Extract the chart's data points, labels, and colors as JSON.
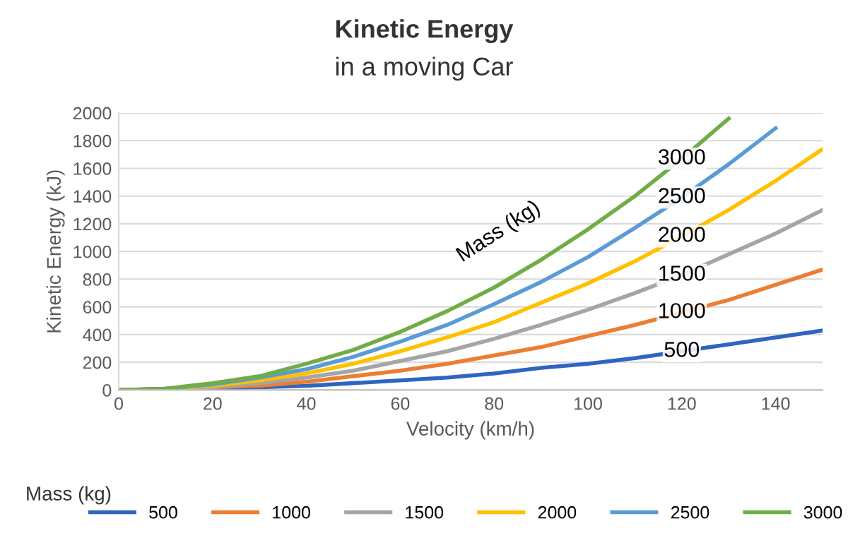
{
  "chart_data": {
    "type": "line",
    "title": "Kinetic Energy",
    "subtitle": "in a moving Car",
    "xlabel": "Velocity (km/h)",
    "ylabel": "Kinetic Energy (kJ)",
    "legend_title": "Mass (kg)",
    "x": [
      0,
      10,
      20,
      30,
      40,
      50,
      60,
      70,
      80,
      90,
      100,
      110,
      120,
      130,
      140,
      150
    ],
    "series": [
      {
        "name": "500",
        "color": "#2f65c0",
        "values": [
          0,
          0,
          10,
          20,
          30,
          50,
          70,
          90,
          120,
          160,
          190,
          230,
          280,
          330,
          380,
          430
        ]
      },
      {
        "name": "1000",
        "color": "#ed7d31",
        "values": [
          0,
          0,
          20,
          30,
          60,
          100,
          140,
          190,
          250,
          310,
          390,
          470,
          560,
          650,
          760,
          870
        ]
      },
      {
        "name": "1500",
        "color": "#a5a5a5",
        "values": [
          0,
          10,
          20,
          50,
          90,
          140,
          210,
          280,
          370,
          470,
          580,
          700,
          830,
          980,
          1130,
          1300
        ]
      },
      {
        "name": "2000",
        "color": "#ffc000",
        "values": [
          0,
          10,
          30,
          70,
          120,
          190,
          280,
          380,
          490,
          630,
          770,
          930,
          1110,
          1300,
          1510,
          1740
        ]
      },
      {
        "name": "2500",
        "color": "#5b9bd5",
        "values": [
          0,
          10,
          40,
          90,
          150,
          240,
          350,
          470,
          620,
          780,
          960,
          1170,
          1390,
          1630,
          1890,
          null
        ]
      },
      {
        "name": "3000",
        "color": "#70ad47",
        "values": [
          0,
          10,
          50,
          100,
          190,
          290,
          420,
          570,
          740,
          940,
          1160,
          1400,
          1670,
          1960,
          null,
          null
        ]
      }
    ],
    "annotations": [
      "Mass (kg)"
    ],
    "xlim": [
      0,
      150
    ],
    "ylim": [
      0,
      2000
    ],
    "xticks": [
      0,
      20,
      40,
      60,
      80,
      100,
      120,
      140
    ],
    "yticks": [
      0,
      200,
      400,
      600,
      800,
      1000,
      1200,
      1400,
      1600,
      1800,
      2000
    ],
    "grid": "y",
    "legend": "bottom",
    "marker": "none",
    "line_style": "solid"
  }
}
